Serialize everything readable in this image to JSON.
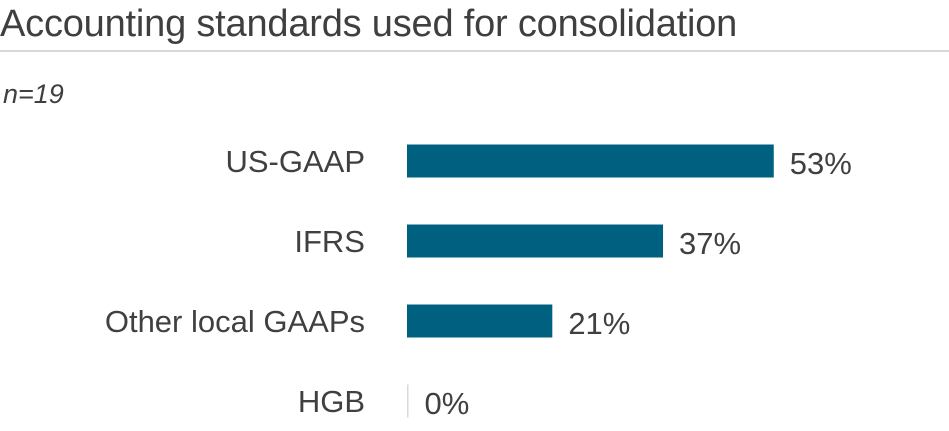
{
  "colors": {
    "bar": "#006080",
    "zero_bar": "#d9d9d9"
  },
  "chart_data": {
    "type": "bar",
    "orientation": "horizontal",
    "title": "Accounting standards used for consolidation",
    "subtitle": "n=19",
    "categories": [
      "US-GAAP",
      "IFRS",
      "Other local GAAPs",
      "HGB"
    ],
    "values": [
      53,
      37,
      21,
      0
    ],
    "value_labels": [
      "53%",
      "37%",
      "21%",
      "0%"
    ],
    "unit": "%",
    "xlim": [
      0,
      100
    ],
    "grid": false,
    "legend": "none"
  }
}
